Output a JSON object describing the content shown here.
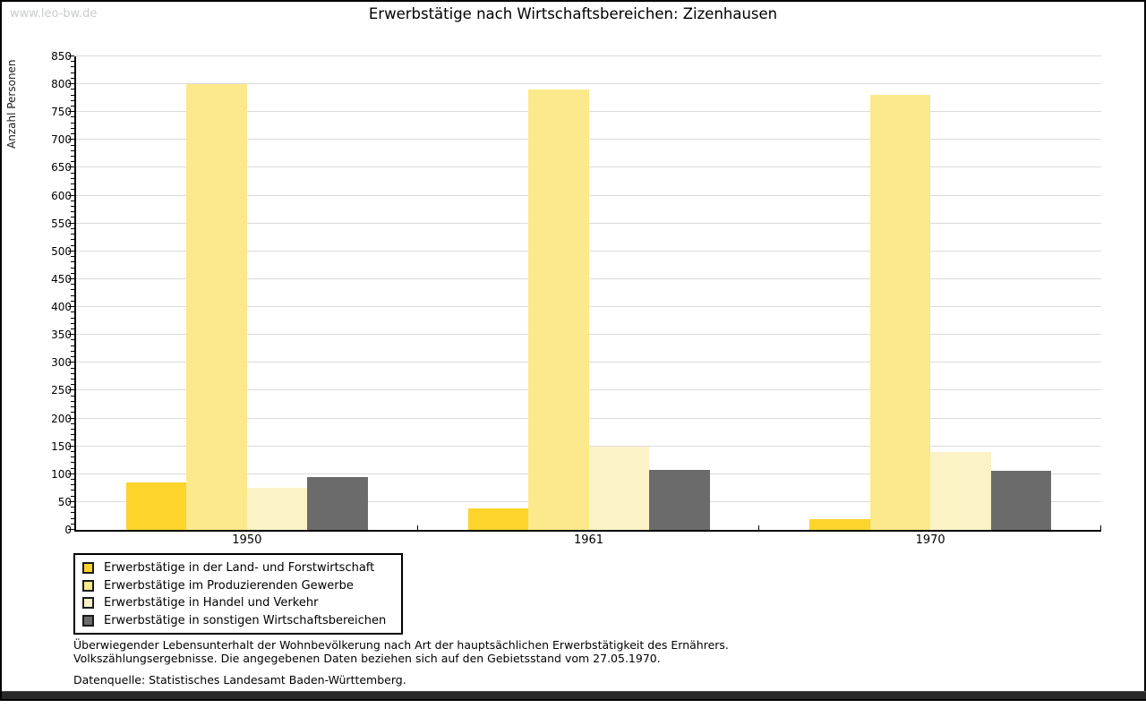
{
  "watermark": "www.leo-bw.de",
  "title": "Erwerbstätige nach Wirtschaftsbereichen: Zizenhausen",
  "chart_data": {
    "type": "bar",
    "title": "Erwerbstätige nach Wirtschaftsbereichen: Zizenhausen",
    "categories": [
      "1950",
      "1961",
      "1970"
    ],
    "series": [
      {
        "name": "Erwerbstätige in der Land- und Forstwirtschaft",
        "color": "#FCD42C",
        "values": [
          85,
          38,
          20
        ]
      },
      {
        "name": "Erwerbstätige im Produzierenden Gewerbe",
        "color": "#FBE98B",
        "values": [
          800,
          790,
          781
        ]
      },
      {
        "name": "Erwerbstätige in Handel und Verkehr",
        "color": "#FBF3C5",
        "values": [
          75,
          150,
          140
        ]
      },
      {
        "name": "Erwerbstätige in sonstigen Wirtschaftsbereichen",
        "color": "#6B6B6B",
        "values": [
          95,
          108,
          106
        ]
      }
    ],
    "xlabel": "",
    "ylabel": "Anzahl Personen",
    "ylim": [
      0,
      850
    ],
    "ytick_step": 50,
    "yminor_step": 10,
    "grid": true,
    "legend_position": "bottom-left",
    "grid_color": "#dbdbdb"
  },
  "footnotes": {
    "line1": "Überwiegender Lebensunterhalt der Wohnbevölkerung nach Art der hauptsächlichen Erwerbstätigkeit des Ernährers.",
    "line2": "Volkszählungsergebnisse. Die angegebenen Daten beziehen sich auf den Gebietsstand vom 27.05.1970.",
    "source": "Datenquelle: Statistisches Landesamt Baden-Württemberg."
  }
}
